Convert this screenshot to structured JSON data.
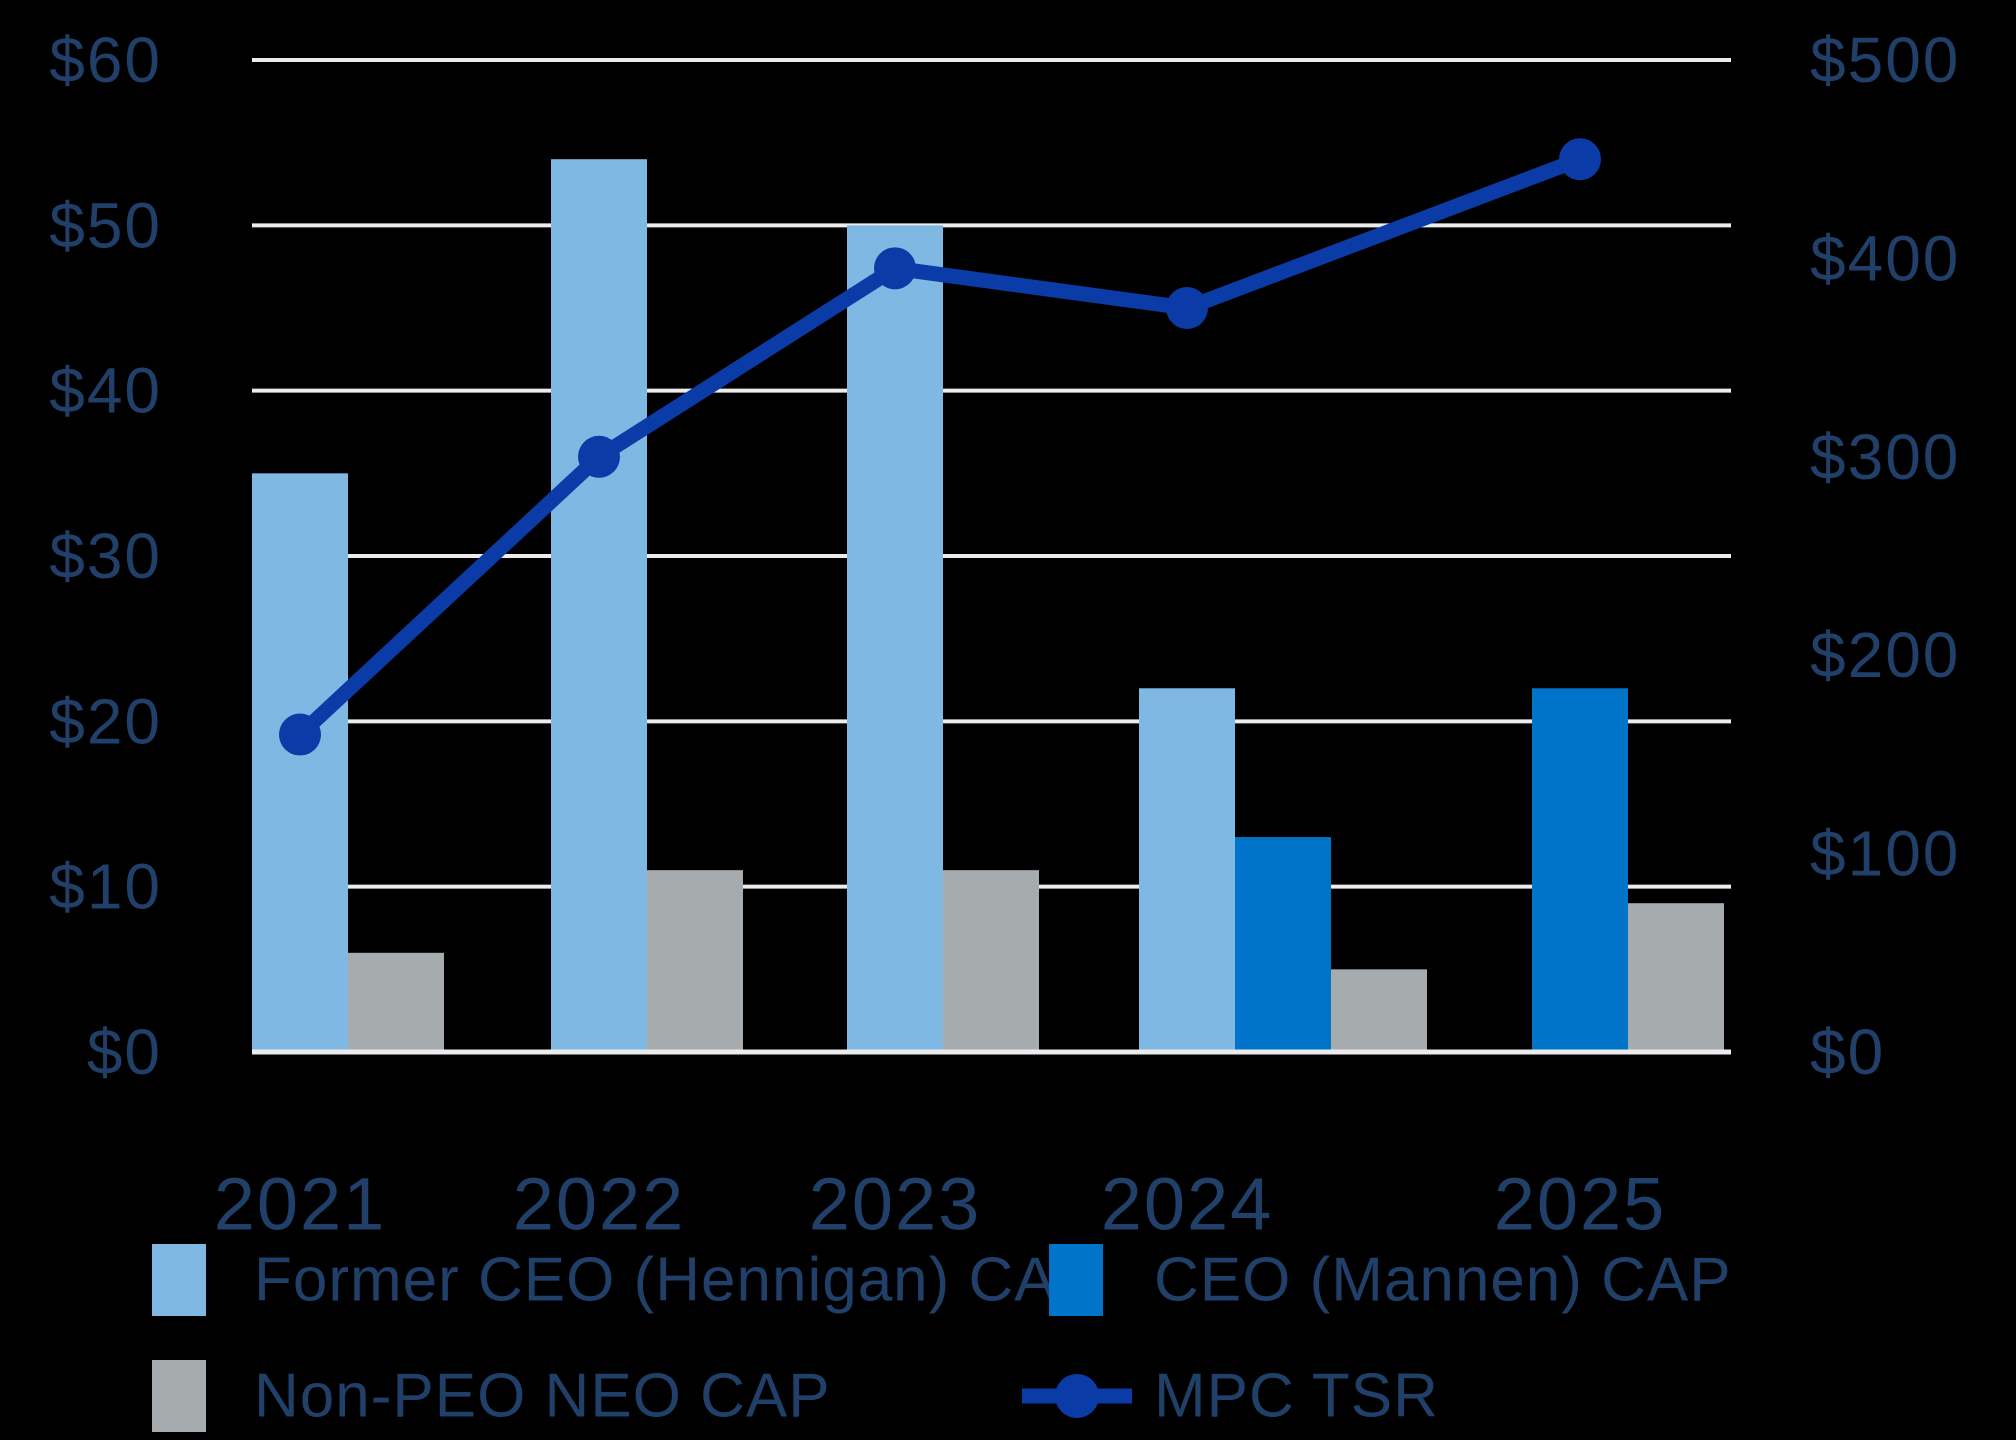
{
  "page": {
    "background": "#000000",
    "label_color": "#204069",
    "grid_color": "#ececec"
  },
  "chart_data": {
    "type": "bar",
    "subtype": "combo-bar-line-dual-axis",
    "categories": [
      "2021",
      "2022",
      "2023",
      "2024",
      "2025"
    ],
    "series": [
      {
        "name": "Former CEO (Hennigan) CAP",
        "type": "bar",
        "axis": "left",
        "color": "#7FB8E3",
        "values": [
          35,
          54,
          50,
          22,
          null
        ]
      },
      {
        "name": "CEO (Mannen) CAP",
        "type": "bar",
        "axis": "left",
        "color": "#0074C8",
        "values": [
          null,
          null,
          null,
          13,
          22
        ]
      },
      {
        "name": "Non-PEO NEO CAP",
        "type": "bar",
        "axis": "left",
        "color": "#A6ABAE",
        "values": [
          6,
          11,
          11,
          5,
          9
        ]
      },
      {
        "name": "MPC TSR",
        "type": "line",
        "axis": "right",
        "color": "#0B3BA7",
        "values": [
          160,
          300,
          395,
          375,
          450
        ]
      }
    ],
    "left_axis": {
      "range": [
        0,
        60
      ],
      "tick_values": [
        0,
        10,
        20,
        30,
        40,
        50,
        60
      ],
      "ticks": [
        "$0",
        "$10",
        "$20",
        "$30",
        "$40",
        "$50",
        "$60"
      ]
    },
    "right_axis": {
      "range": [
        0,
        500
      ],
      "tick_values": [
        0,
        100,
        200,
        300,
        400,
        500
      ],
      "ticks": [
        "$0",
        "$100",
        "$200",
        "$300",
        "$400",
        "$500"
      ]
    },
    "grid": true,
    "legend_position": "bottom",
    "title": "",
    "xlabel": "",
    "ylabel": ""
  },
  "legend": {
    "items": [
      {
        "label": "Former CEO (Hennigan) CAP",
        "swatch": "bar",
        "color": "#7FB8E3"
      },
      {
        "label": "CEO (Mannen) CAP",
        "swatch": "bar",
        "color": "#0074C8"
      },
      {
        "label": "Non-PEO NEO CAP",
        "swatch": "bar",
        "color": "#A6ABAE"
      },
      {
        "label": "MPC TSR",
        "swatch": "line",
        "color": "#0B3BA7"
      }
    ]
  }
}
